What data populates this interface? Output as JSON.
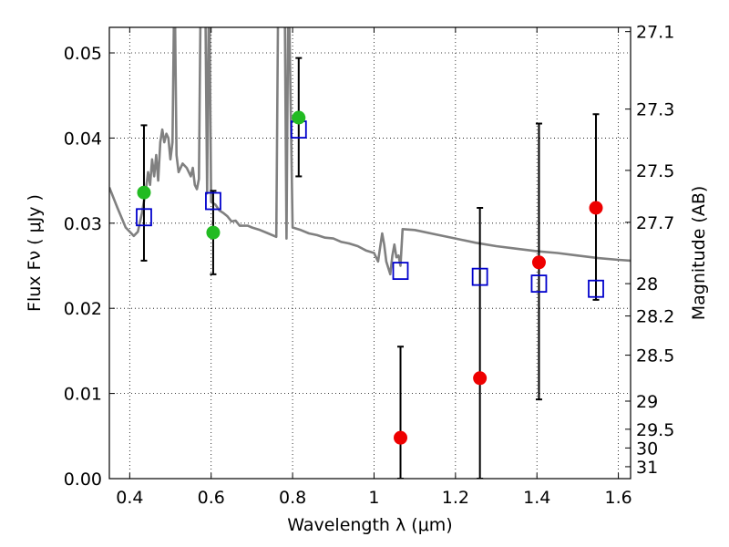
{
  "chart_data": {
    "type": "scatter",
    "xlabel": "Wavelength  λ (μm)",
    "ylabel": "Flux  Fν  ( μJy )",
    "ylabel2": "Magnitude (AB)",
    "xlim": [
      0.35,
      1.63
    ],
    "ylim": [
      0.0,
      0.053
    ],
    "x_ticks": [
      0.4,
      0.6,
      0.8,
      1.0,
      1.2,
      1.4,
      1.6
    ],
    "x_tick_labels": [
      "0.4",
      "0.6",
      "0.8",
      "1",
      "1.2",
      "1.4",
      "1.6"
    ],
    "y_ticks": [
      0.0,
      0.01,
      0.02,
      0.03,
      0.04,
      0.05
    ],
    "y_tick_labels": [
      "0.00",
      "0.01",
      "0.02",
      "0.03",
      "0.04",
      "0.05"
    ],
    "y2_ticks": [
      {
        "flux": 0.0525,
        "label": "27.1"
      },
      {
        "flux": 0.0434,
        "label": "27.3"
      },
      {
        "flux": 0.0362,
        "label": "27.5"
      },
      {
        "flux": 0.0301,
        "label": "27.7"
      },
      {
        "flux": 0.0229,
        "label": "28"
      },
      {
        "flux": 0.0191,
        "label": "28.2"
      },
      {
        "flux": 0.0145,
        "label": "28.5"
      },
      {
        "flux": 0.0091,
        "label": "29"
      },
      {
        "flux": 0.0058,
        "label": "29.5"
      },
      {
        "flux": 0.0036,
        "label": "30"
      },
      {
        "flux": 0.0014,
        "label": "31"
      }
    ],
    "grid": true,
    "colors": {
      "model": "#808080",
      "detection": "#22bb22",
      "upper_limit": "#ee0000",
      "model_band": "#0000cc",
      "errorbar": "#000000"
    },
    "model_spectrum": {
      "x": [
        0.35,
        0.37,
        0.39,
        0.41,
        0.42,
        0.43,
        0.44,
        0.445,
        0.45,
        0.455,
        0.46,
        0.465,
        0.47,
        0.475,
        0.48,
        0.485,
        0.49,
        0.495,
        0.5,
        0.505,
        0.51,
        0.515,
        0.52,
        0.53,
        0.54,
        0.55,
        0.555,
        0.56,
        0.565,
        0.57,
        0.575,
        0.58,
        0.585,
        0.59,
        0.595,
        0.6,
        0.61,
        0.62,
        0.63,
        0.64,
        0.65,
        0.66,
        0.67,
        0.68,
        0.69,
        0.7,
        0.72,
        0.74,
        0.76,
        0.765,
        0.77,
        0.775,
        0.78,
        0.785,
        0.79,
        0.8,
        0.82,
        0.84,
        0.86,
        0.88,
        0.9,
        0.92,
        0.94,
        0.96,
        0.98,
        1.0,
        1.01,
        1.02,
        1.025,
        1.03,
        1.04,
        1.045,
        1.05,
        1.055,
        1.06,
        1.065,
        1.07,
        1.1,
        1.15,
        1.2,
        1.25,
        1.3,
        1.35,
        1.4,
        1.45,
        1.5,
        1.55,
        1.6,
        1.63
      ],
      "y": [
        0.0342,
        0.0318,
        0.0295,
        0.0285,
        0.029,
        0.0312,
        0.034,
        0.036,
        0.0345,
        0.0375,
        0.0355,
        0.038,
        0.035,
        0.0395,
        0.041,
        0.0395,
        0.0405,
        0.04,
        0.0375,
        0.0395,
        0.06,
        0.038,
        0.036,
        0.037,
        0.0365,
        0.0355,
        0.0365,
        0.0345,
        0.034,
        0.0352,
        0.06,
        0.06,
        0.06,
        0.0335,
        0.06,
        0.0325,
        0.0322,
        0.0315,
        0.0312,
        0.0308,
        0.0302,
        0.0303,
        0.0297,
        0.0297,
        0.0297,
        0.0295,
        0.0292,
        0.0288,
        0.0284,
        0.06,
        0.06,
        0.06,
        0.06,
        0.0282,
        0.06,
        0.0295,
        0.0292,
        0.0288,
        0.0286,
        0.0283,
        0.0282,
        0.0278,
        0.0276,
        0.0273,
        0.0268,
        0.0265,
        0.0255,
        0.0288,
        0.0275,
        0.0255,
        0.024,
        0.0262,
        0.0275,
        0.026,
        0.0262,
        0.025,
        0.0293,
        0.0292,
        0.0287,
        0.0282,
        0.0277,
        0.0273,
        0.027,
        0.0267,
        0.0265,
        0.0262,
        0.0259,
        0.0257,
        0.0256
      ]
    },
    "series": [
      {
        "x": [
          0.435,
          0.605,
          0.815
        ],
        "y": [
          0.0336,
          0.0289,
          0.0424
        ],
        "err_low": [
          0.0256,
          0.024,
          0.0355
        ],
        "err_high": [
          0.0415,
          0.0338,
          0.0494
        ]
      },
      {
        "x": [
          1.065,
          1.26,
          1.405,
          1.545
        ],
        "y": [
          0.0048,
          0.0118,
          0.0254,
          0.0318
        ],
        "err_low": [
          0.0,
          0.0,
          0.0093,
          0.021
        ],
        "err_high": [
          0.0155,
          0.0318,
          0.0417,
          0.0428
        ]
      },
      {
        "x": [
          0.435,
          0.605,
          0.815,
          1.065,
          1.26,
          1.405,
          1.545
        ],
        "y": [
          0.0307,
          0.0326,
          0.041,
          0.0244,
          0.0237,
          0.0229,
          0.0223
        ]
      }
    ]
  }
}
